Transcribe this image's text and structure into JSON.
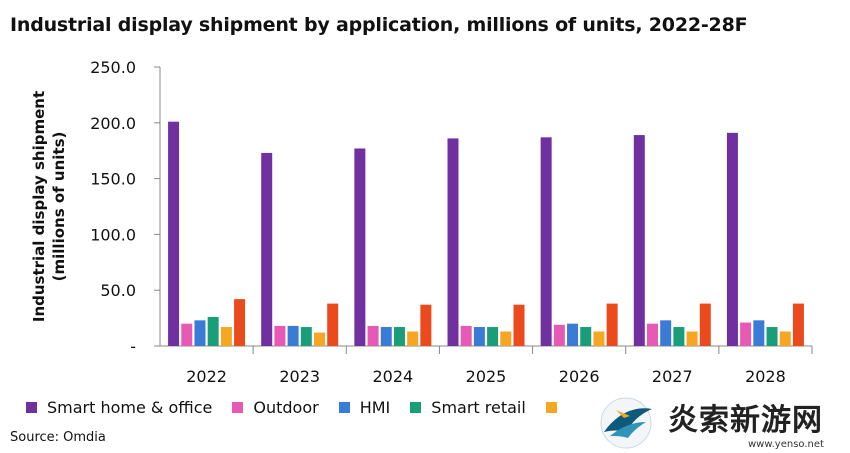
{
  "title": "Industrial display shipment by application, millions of units, 2022-28F",
  "source": "Source: Omdia",
  "watermark_text": "炎索新游网",
  "watermark_url": "www.yenso.net",
  "chart_data": {
    "type": "bar",
    "categories": [
      "2022",
      "2023",
      "2024",
      "2025",
      "2026",
      "2027",
      "2028"
    ],
    "series": [
      {
        "name": "Smart home & office",
        "color": "#7030a0",
        "values": [
          201,
          173,
          177,
          186,
          187,
          189,
          191
        ]
      },
      {
        "name": "Outdoor",
        "color": "#e659b4",
        "values": [
          20,
          18,
          18,
          18,
          19,
          20,
          21
        ]
      },
      {
        "name": "HMI",
        "color": "#3a7bd5",
        "values": [
          23,
          18,
          17,
          17,
          20,
          23,
          23
        ]
      },
      {
        "name": "Smart retail",
        "color": "#1a9e7a",
        "values": [
          26,
          17,
          17,
          17,
          17,
          17,
          17
        ]
      },
      {
        "name": "",
        "color": "#f5a623",
        "values": [
          17,
          12,
          13,
          13,
          13,
          13,
          13
        ]
      },
      {
        "name": "",
        "color": "#ea4a1c",
        "values": [
          42,
          38,
          37,
          37,
          38,
          38,
          38
        ]
      }
    ],
    "ylabel": "Industrial display shipment\n(millions of units)",
    "xlabel": "",
    "ylim": [
      0,
      250
    ],
    "yticks": [
      0,
      50,
      100,
      150,
      200,
      250
    ],
    "ytick_labels": [
      "-",
      "50.0",
      "100.0",
      "150.0",
      "200.0",
      "250.0"
    ],
    "grid": false,
    "legend": "bottom"
  }
}
